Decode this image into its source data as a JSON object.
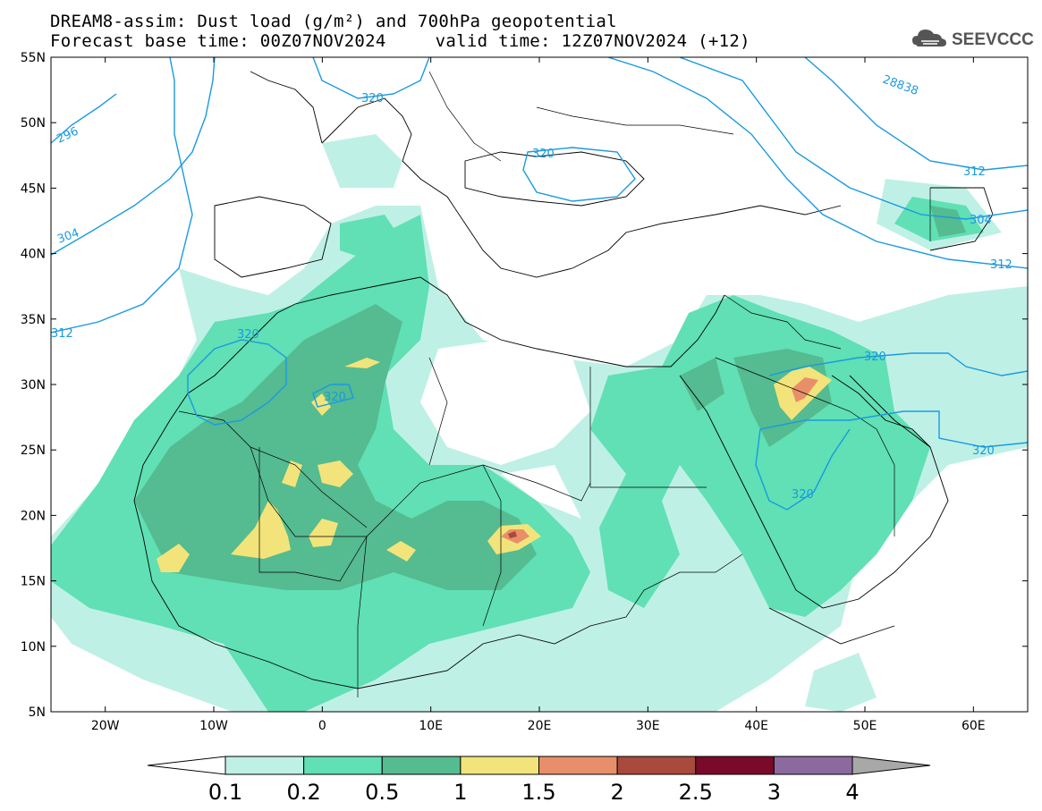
{
  "header": {
    "title_line1": "DREAM8-assim: Dust load (g/m²) and 700hPa geopotential",
    "forecast_base": "Forecast base time: 00Z07NOV2024",
    "valid_time": "valid time: 12Z07NOV2024 (+12)"
  },
  "logo": {
    "text": "SEEVCCC",
    "icon": "cloud-icon"
  },
  "axes": {
    "lat_labels": [
      "55N",
      "50N",
      "45N",
      "40N",
      "35N",
      "30N",
      "25N",
      "20N",
      "15N",
      "10N",
      "5N"
    ],
    "lon_labels": [
      "20W",
      "10W",
      "0",
      "10E",
      "20E",
      "30E",
      "40E",
      "50E",
      "60E"
    ]
  },
  "contours": {
    "color": "#1a9ae0",
    "labels": [
      "296",
      "304",
      "312",
      "320",
      "320",
      "320",
      "320",
      "320",
      "320",
      "320",
      "304",
      "312",
      "28838",
      "312"
    ]
  },
  "colorbar": {
    "ticks": [
      "0.1",
      "0.2",
      "0.5",
      "1",
      "1.5",
      "2",
      "2.5",
      "3",
      "4"
    ],
    "colors": [
      "#ffffff",
      "#bff0e6",
      "#60e0b4",
      "#55bb90",
      "#f2e47a",
      "#e88f6a",
      "#a84a3c",
      "#7a0a2a",
      "#8c6aa0",
      "#a8a8a8"
    ]
  },
  "dust_colors": {
    "light": "#bff0e6",
    "medium": "#60e0b4",
    "dark": "#55bb90",
    "yellow": "#f2e47a",
    "orange": "#e88f6a",
    "red": "#a84a3c"
  }
}
